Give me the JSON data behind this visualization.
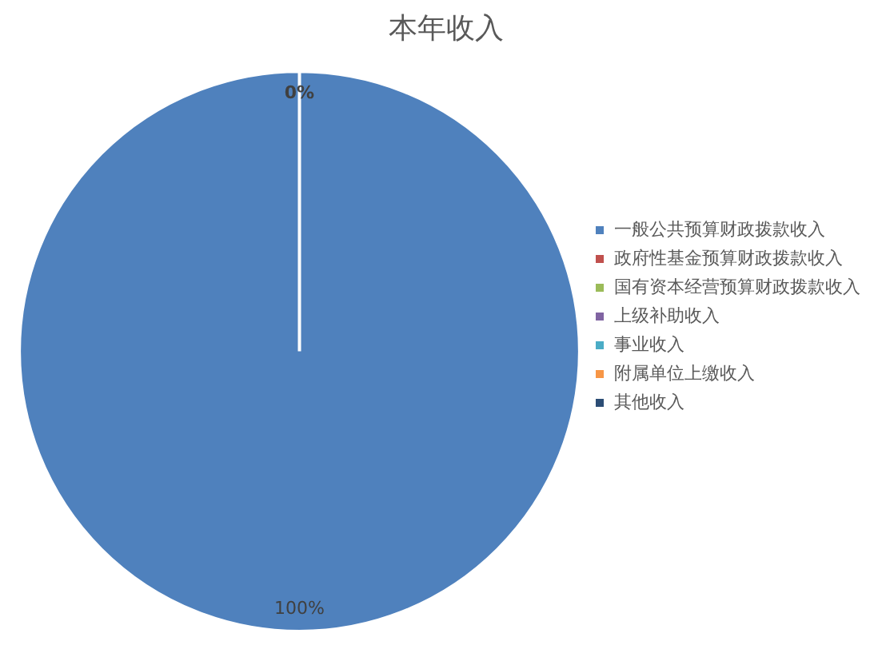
{
  "chart_data": {
    "type": "pie",
    "title": "本年收入",
    "categories": [
      "一般公共预算财政拨款收入",
      "政府性基金预算财政拨款收入",
      "国有资本经营预算财政拨款收入",
      "上级补助收入",
      "事业收入",
      "附属单位上缴收入",
      "其他收入"
    ],
    "values": [
      100,
      0,
      0,
      0,
      0,
      0,
      0
    ],
    "colors": [
      "#4f81bd",
      "#c0504d",
      "#9bbb59",
      "#8064a2",
      "#4bacc6",
      "#f79646",
      "#2c4d75"
    ],
    "value_labels": [
      "100%",
      "0%",
      null,
      null,
      null,
      null,
      null
    ],
    "legend": "right"
  }
}
